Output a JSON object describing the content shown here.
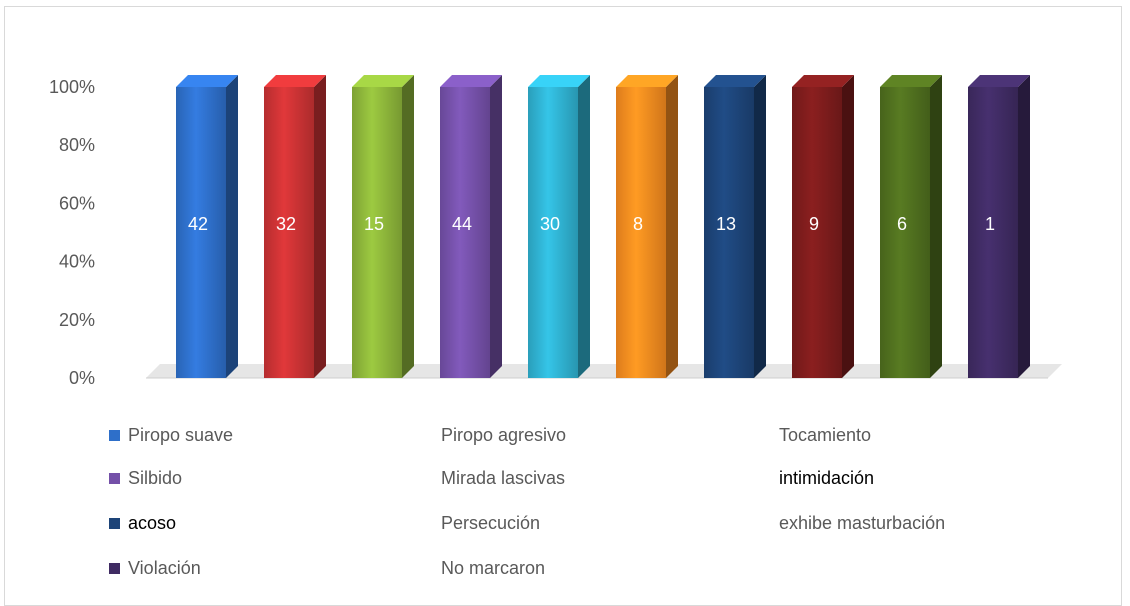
{
  "chart_data": {
    "type": "bar",
    "stacked_percent": true,
    "categories": [
      "Piropo suave",
      "Piropo agresivo",
      "Tocamiento",
      "Silbido",
      "Mirada lascivas",
      "intimidación",
      "acoso",
      "Persecución",
      "exhibe masturbación",
      "Violación"
    ],
    "values": [
      42,
      32,
      15,
      44,
      30,
      8,
      13,
      9,
      6,
      1
    ],
    "y_ticks": [
      "0%",
      "20%",
      "40%",
      "60%",
      "80%",
      "100%"
    ],
    "ylim": [
      0,
      100
    ],
    "legend_position": "bottom",
    "colors": [
      "#2e6fc9",
      "#c93234",
      "#8cb43a",
      "#7450a8",
      "#2fb0cf",
      "#f58a1f",
      "#1d4478",
      "#7c1c1c",
      "#4f6e1e",
      "#3f2b63"
    ],
    "legend": [
      {
        "label": "Piropo suave",
        "swatch": "#2e6fc9",
        "dark": false
      },
      {
        "label": "Piropo agresivo",
        "swatch": "",
        "dark": false
      },
      {
        "label": "Tocamiento",
        "swatch": "",
        "dark": false
      },
      {
        "label": "Silbido",
        "swatch": "#7450a8",
        "dark": false
      },
      {
        "label": "Mirada lascivas",
        "swatch": "",
        "dark": false
      },
      {
        "label": "intimidación",
        "swatch": "",
        "dark": true
      },
      {
        "label": "acoso",
        "swatch": "#1d4478",
        "dark": true
      },
      {
        "label": "Persecución",
        "swatch": "",
        "dark": false
      },
      {
        "label": "exhibe masturbación",
        "swatch": "",
        "dark": false
      },
      {
        "label": "Violación",
        "swatch": "#3f2b63",
        "dark": false
      },
      {
        "label": "No marcaron",
        "swatch": "",
        "dark": false
      }
    ]
  }
}
